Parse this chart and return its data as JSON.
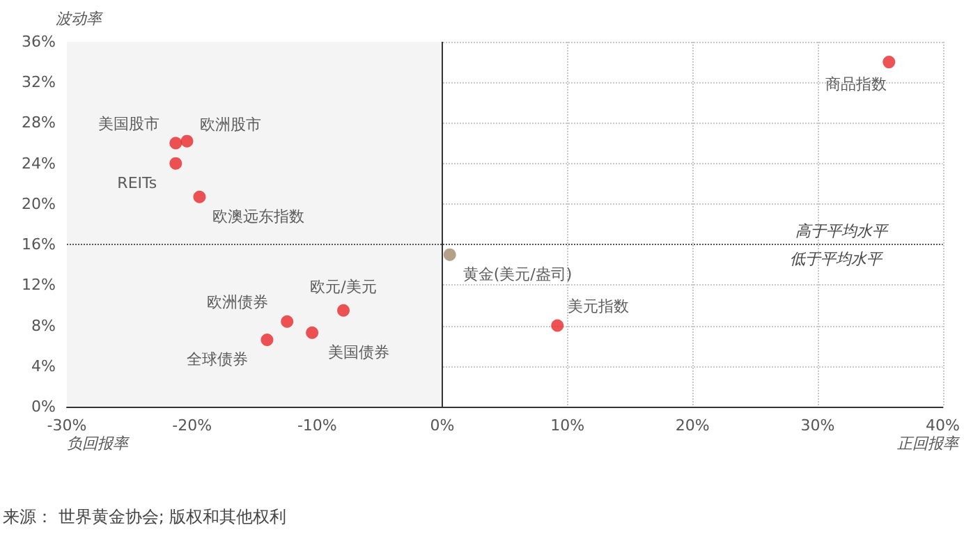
{
  "chart_data": {
    "type": "scatter",
    "ylabel": "波动率",
    "xlabel": "正回报率",
    "annotations": [
      "负回报率",
      "来源： 世界黄金协会; 版权和其他权利",
      {
        "text": "低于平均水平",
        "x": 30,
        "y": 16
      }
    ],
    "xlim": [
      -30,
      40
    ],
    "xticks": [
      {
        "value": -30,
        "label": "-30%"
      },
      {
        "value": -20,
        "label": "-20%"
      },
      {
        "value": -10,
        "label": "-10%"
      },
      {
        "value": 0,
        "label": "0%"
      },
      {
        "value": 10,
        "label": "10%"
      },
      {
        "value": 20,
        "label": "20%"
      },
      {
        "value": 30,
        "label": "30%"
      },
      {
        "value": 40,
        "label": "40%"
      }
    ],
    "ylim": [
      0,
      36
    ],
    "yticks": [
      {
        "value": 0,
        "label": "0%"
      },
      {
        "value": 4,
        "label": "4%"
      },
      {
        "value": 8,
        "label": "8%"
      },
      {
        "value": 12,
        "label": "12%"
      },
      {
        "value": 16,
        "label": "16%"
      },
      {
        "value": 20,
        "label": "20%"
      },
      {
        "value": 24,
        "label": "24%"
      },
      {
        "value": 28,
        "label": "28%"
      },
      {
        "value": 32,
        "label": "32%"
      },
      {
        "value": 36,
        "label": "36%"
      }
    ],
    "grid": true,
    "legend": false,
    "marker": "circle",
    "ref_lines": [
      {
        "axis": "y",
        "value": 16,
        "label": "高于平均水平",
        "line_style": "dotted",
        "color": "#555555"
      },
      {
        "axis": "x",
        "value": 0,
        "color": "#333333",
        "line_style": "solid"
      }
    ],
    "bands": [
      {
        "axis": "x",
        "from": -30,
        "to": 0,
        "color": "#f4f4f4"
      }
    ],
    "series": [
      {
        "name": "美国股市",
        "color": "#e8272a",
        "x": [
          -21.3
        ],
        "values": [
          26.0
        ]
      },
      {
        "name": "欧洲股市",
        "color": "#e8272a",
        "x": [
          -20.4
        ],
        "values": [
          26.2
        ]
      },
      {
        "name": "REITs",
        "color": "#e8272a",
        "x": [
          -21.3
        ],
        "values": [
          24.0
        ]
      },
      {
        "name": "欧澳远东指数",
        "color": "#e8272a",
        "x": [
          -19.4
        ],
        "values": [
          20.7
        ]
      },
      {
        "name": "欧洲债券",
        "color": "#e8272a",
        "x": [
          -12.4
        ],
        "values": [
          8.4
        ]
      },
      {
        "name": "全球债券",
        "color": "#e8272a",
        "x": [
          -14.0
        ],
        "values": [
          6.6
        ]
      },
      {
        "name": "美国债券",
        "color": "#e8272a",
        "x": [
          -10.4
        ],
        "values": [
          7.3
        ]
      },
      {
        "name": "欧元/美元",
        "color": "#e8272a",
        "x": [
          -7.9
        ],
        "values": [
          9.5
        ]
      },
      {
        "name": "黄金(美元/盎司)",
        "color": "#a08b6b",
        "x": [
          0.6
        ],
        "values": [
          15.0
        ]
      },
      {
        "name": "美元指数",
        "color": "#e8272a",
        "x": [
          9.2
        ],
        "values": [
          8.0
        ]
      },
      {
        "name": "商品指数",
        "color": "#e8272a",
        "x": [
          35.7
        ],
        "values": [
          34.0
        ]
      }
    ]
  }
}
